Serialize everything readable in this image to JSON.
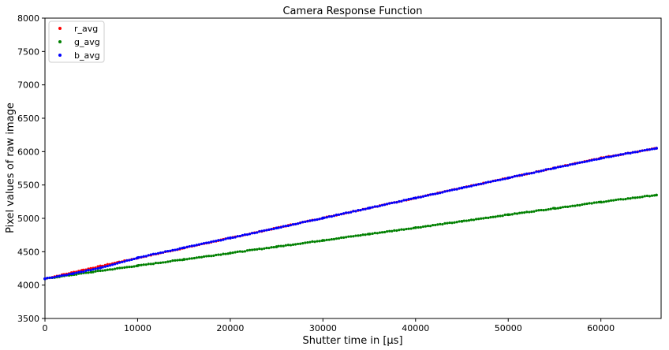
{
  "chart_data": {
    "type": "scatter",
    "title": "Camera Response Function",
    "xlabel": "Shutter time in [µs]",
    "ylabel": "Pixel values of raw image",
    "xlim": [
      0,
      66500
    ],
    "ylim": [
      3500,
      8000
    ],
    "xticks": [
      0,
      10000,
      20000,
      30000,
      40000,
      50000,
      60000
    ],
    "yticks": [
      3500,
      4000,
      4500,
      5000,
      5500,
      6000,
      6500,
      7000,
      7500,
      8000
    ],
    "grid": false,
    "legend_position": "top-left",
    "series": [
      {
        "name": "r_avg",
        "color": "#ff0000",
        "x": [
          0,
          2000,
          4000,
          6000,
          8000,
          10000,
          15000,
          20000,
          30000,
          40000,
          50000,
          60000,
          66000
        ],
        "y": [
          4095,
          4158,
          4222,
          4284,
          4345,
          4406,
          4556,
          4706,
          5006,
          5306,
          5606,
          5906,
          6050
        ]
      },
      {
        "name": "g_avg",
        "color": "#008000",
        "x": [
          0,
          5000,
          10000,
          15000,
          20000,
          25000,
          30000,
          35000,
          40000,
          45000,
          50000,
          55000,
          60000,
          66000
        ],
        "y": [
          4095,
          4195,
          4290,
          4385,
          4480,
          4575,
          4670,
          4765,
          4860,
          4955,
          5055,
          5150,
          5245,
          5350
        ]
      },
      {
        "name": "b_avg",
        "color": "#0000ff",
        "x": [
          0,
          3000,
          6000,
          10000,
          15000,
          20000,
          25000,
          30000,
          35000,
          40000,
          45000,
          50000,
          55000,
          60000,
          66000
        ],
        "y": [
          4095,
          4170,
          4260,
          4410,
          4560,
          4705,
          4855,
          5005,
          5155,
          5305,
          5455,
          5605,
          5755,
          5900,
          6050
        ]
      }
    ]
  }
}
